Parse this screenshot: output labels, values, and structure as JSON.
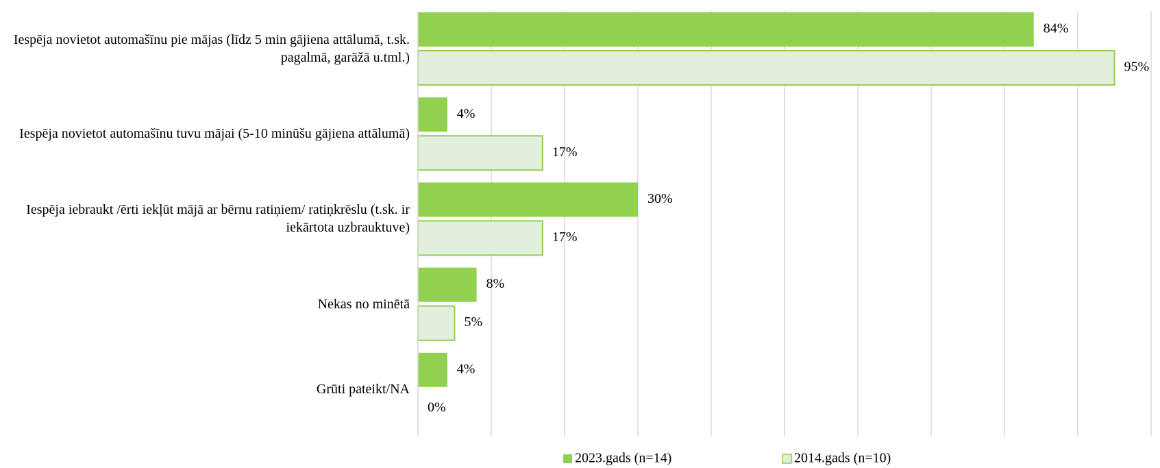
{
  "chart_data": {
    "type": "bar",
    "orientation": "horizontal",
    "categories": [
      "Iespēja novietot automašīnu pie mājas (līdz 5 min gājiena attālumā, t.sk. pagalmā, garāžā u.tml.)",
      "Iespēja novietot automašīnu tuvu mājai (5-10 minūšu gājiena attālumā)",
      "Iespēja iebraukt /ērti iekļūt mājā ar bērnu ratiņiem/ ratiņkrēslu (t.sk. ir iekārtota uzbrauktuve)",
      "Nekas no minētā",
      "Grūti pateikt/NA"
    ],
    "series": [
      {
        "name": "2023.gads (n=14)",
        "color": "#92d050",
        "values": [
          84,
          4,
          30,
          8,
          4
        ],
        "value_labels": [
          "84%",
          "4%",
          "30%",
          "8%",
          "4%"
        ]
      },
      {
        "name": "2014.gads (n=10)",
        "color": "#e2efda",
        "edgecolor": "#92d050",
        "values": [
          95,
          17,
          17,
          5,
          0
        ],
        "value_labels": [
          "95%",
          "17%",
          "17%",
          "5%",
          "0%"
        ]
      }
    ],
    "xlim": [
      0,
      100
    ],
    "xticks": [
      0,
      10,
      20,
      30,
      40,
      50,
      60,
      70,
      80,
      90,
      100
    ],
    "grid": true,
    "legend": "bottom"
  }
}
